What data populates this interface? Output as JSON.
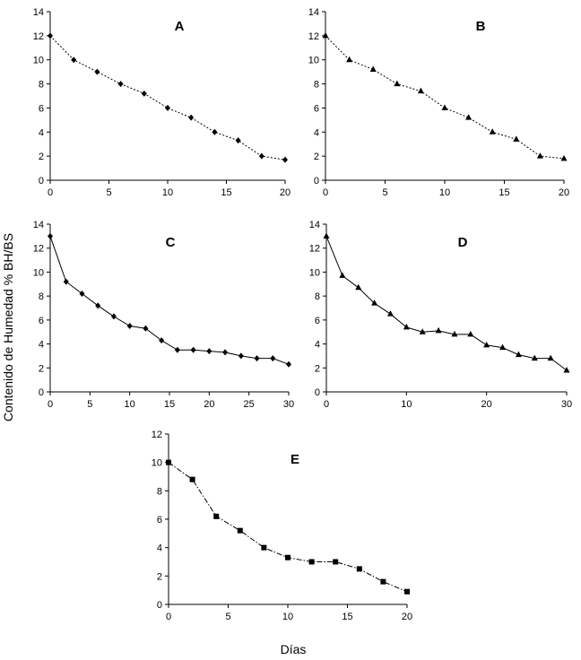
{
  "shared": {
    "ylabel": "Contenido de Humedad  % BH/BS",
    "xlabel": "Días"
  },
  "chart_data": [
    {
      "type": "line",
      "panel": "A",
      "marker": "diamond",
      "line_style": "dotted",
      "xlim": [
        0,
        20
      ],
      "ylim": [
        0,
        14
      ],
      "xticks": [
        0,
        5,
        10,
        15,
        20
      ],
      "yticks": [
        0,
        2,
        4,
        6,
        8,
        10,
        12,
        14
      ],
      "x": [
        0,
        2,
        4,
        6,
        8,
        10,
        12,
        14,
        16,
        18,
        20
      ],
      "y": [
        12,
        10,
        9,
        8,
        7.2,
        6,
        5.2,
        4,
        3.3,
        2,
        1.7
      ]
    },
    {
      "type": "line",
      "panel": "B",
      "marker": "triangle",
      "line_style": "dotted",
      "xlim": [
        0,
        20
      ],
      "ylim": [
        0,
        14
      ],
      "xticks": [
        0,
        5,
        10,
        15,
        20
      ],
      "yticks": [
        0,
        2,
        4,
        6,
        8,
        10,
        12,
        14
      ],
      "x": [
        0,
        2,
        4,
        6,
        8,
        10,
        12,
        14,
        16,
        18,
        20
      ],
      "y": [
        12,
        10,
        9.2,
        8,
        7.4,
        6,
        5.2,
        4,
        3.4,
        2,
        1.8
      ]
    },
    {
      "type": "line",
      "panel": "C",
      "marker": "diamond",
      "line_style": "solid",
      "xlim": [
        0,
        30
      ],
      "ylim": [
        0,
        14
      ],
      "xticks": [
        0,
        5,
        10,
        15,
        20,
        25,
        30
      ],
      "yticks": [
        0,
        2,
        4,
        6,
        8,
        10,
        12,
        14
      ],
      "x": [
        0,
        2,
        4,
        6,
        8,
        10,
        12,
        14,
        16,
        18,
        20,
        22,
        24,
        26,
        28,
        30
      ],
      "y": [
        13,
        9.2,
        8.2,
        7.2,
        6.3,
        5.5,
        5.3,
        4.3,
        3.5,
        3.5,
        3.4,
        3.3,
        3,
        2.8,
        2.8,
        2.3
      ]
    },
    {
      "type": "line",
      "panel": "D",
      "marker": "triangle",
      "line_style": "solid",
      "xlim": [
        0,
        30
      ],
      "ylim": [
        0,
        14
      ],
      "xticks": [
        0,
        10,
        20,
        30
      ],
      "yticks": [
        0,
        2,
        4,
        6,
        8,
        10,
        12,
        14
      ],
      "x": [
        0,
        2,
        4,
        6,
        8,
        10,
        12,
        14,
        16,
        18,
        20,
        22,
        24,
        26,
        28,
        30
      ],
      "y": [
        13,
        9.7,
        8.7,
        7.4,
        6.5,
        5.4,
        5,
        5.1,
        4.8,
        4.8,
        3.9,
        3.7,
        3.1,
        2.8,
        2.8,
        1.8
      ]
    },
    {
      "type": "line",
      "panel": "E",
      "marker": "square",
      "line_style": "dash-dot",
      "xlim": [
        0,
        20
      ],
      "ylim": [
        0,
        12
      ],
      "xticks": [
        0,
        5,
        10,
        15,
        20
      ],
      "yticks": [
        0,
        2,
        4,
        6,
        8,
        10,
        12
      ],
      "x": [
        0,
        2,
        4,
        6,
        8,
        10,
        12,
        14,
        16,
        18,
        20
      ],
      "y": [
        10,
        8.8,
        6.2,
        5.2,
        4,
        3.3,
        3,
        3,
        2.5,
        1.6,
        0.9
      ]
    }
  ]
}
